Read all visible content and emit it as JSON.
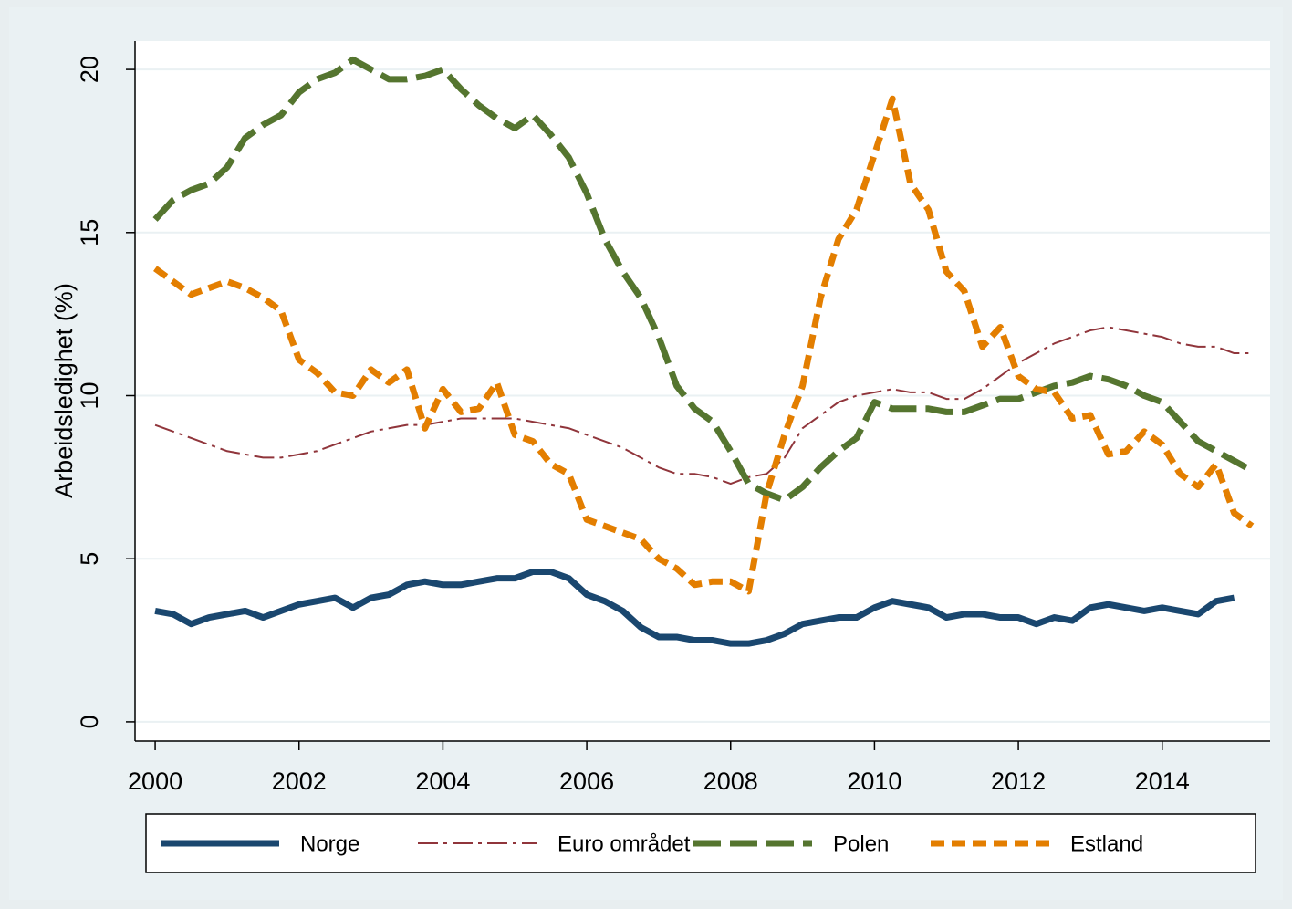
{
  "chart_data": {
    "type": "line",
    "y_label": "Arbeidsledighet (%)",
    "x": [
      2000,
      2000.25,
      2000.5,
      2000.75,
      2001,
      2001.25,
      2001.5,
      2001.75,
      2002,
      2002.25,
      2002.5,
      2002.75,
      2003,
      2003.25,
      2003.5,
      2003.75,
      2004,
      2004.25,
      2004.5,
      2004.75,
      2005,
      2005.25,
      2005.5,
      2005.75,
      2006,
      2006.25,
      2006.5,
      2006.75,
      2007,
      2007.25,
      2007.5,
      2007.75,
      2008,
      2008.25,
      2008.5,
      2008.75,
      2009,
      2009.25,
      2009.5,
      2009.75,
      2010,
      2010.25,
      2010.5,
      2010.75,
      2011,
      2011.25,
      2011.5,
      2011.75,
      2012,
      2012.25,
      2012.5,
      2012.75,
      2013,
      2013.25,
      2013.5,
      2013.75,
      2014,
      2014.25,
      2014.5,
      2014.75,
      2015,
      2015.25
    ],
    "series": [
      {
        "name": "Norge",
        "color": "#1a476f",
        "dash": "solid",
        "width": 7,
        "values": [
          3.4,
          3.3,
          3.0,
          3.2,
          3.3,
          3.4,
          3.2,
          3.4,
          3.6,
          3.7,
          3.8,
          3.5,
          3.8,
          3.9,
          4.2,
          4.3,
          4.2,
          4.2,
          4.3,
          4.4,
          4.4,
          4.6,
          4.6,
          4.4,
          3.9,
          3.7,
          3.4,
          2.9,
          2.6,
          2.6,
          2.5,
          2.5,
          2.4,
          2.4,
          2.5,
          2.7,
          3.0,
          3.1,
          3.2,
          3.2,
          3.5,
          3.7,
          3.6,
          3.5,
          3.2,
          3.3,
          3.3,
          3.2,
          3.2,
          3.0,
          3.2,
          3.1,
          3.5,
          3.6,
          3.5,
          3.4,
          3.5,
          3.4,
          3.3,
          3.7,
          3.8,
          null
        ]
      },
      {
        "name": "Euro området",
        "color": "#90353b",
        "dash": "dashdot",
        "width": 2,
        "values": [
          9.1,
          8.9,
          8.7,
          8.5,
          8.3,
          8.2,
          8.1,
          8.1,
          8.2,
          8.3,
          8.5,
          8.7,
          8.9,
          9.0,
          9.1,
          9.1,
          9.2,
          9.3,
          9.3,
          9.3,
          9.3,
          9.2,
          9.1,
          9.0,
          8.8,
          8.6,
          8.4,
          8.1,
          7.8,
          7.6,
          7.6,
          7.5,
          7.3,
          7.5,
          7.6,
          8.1,
          9.0,
          9.4,
          9.8,
          10.0,
          10.1,
          10.2,
          10.1,
          10.1,
          9.9,
          9.9,
          10.2,
          10.6,
          11.0,
          11.3,
          11.6,
          11.8,
          12.0,
          12.1,
          12.0,
          11.9,
          11.8,
          11.6,
          11.5,
          11.5,
          11.3,
          11.3
        ]
      },
      {
        "name": "Polen",
        "color": "#55752f",
        "dash": "longdash",
        "width": 7,
        "values": [
          15.4,
          16.0,
          16.3,
          16.5,
          17.0,
          17.9,
          18.3,
          18.6,
          19.3,
          19.7,
          19.9,
          20.3,
          20.0,
          19.7,
          19.7,
          19.8,
          20.0,
          19.4,
          18.9,
          18.5,
          18.2,
          18.6,
          18.0,
          17.3,
          16.2,
          14.8,
          13.8,
          13.0,
          11.8,
          10.3,
          9.6,
          9.2,
          8.3,
          7.3,
          7.0,
          6.8,
          7.2,
          7.8,
          8.3,
          8.7,
          9.8,
          9.6,
          9.6,
          9.6,
          9.5,
          9.5,
          9.7,
          9.9,
          9.9,
          10.1,
          10.3,
          10.4,
          10.6,
          10.5,
          10.3,
          10.0,
          9.8,
          9.2,
          8.6,
          8.3,
          8.0,
          7.7
        ]
      },
      {
        "name": "Estland",
        "color": "#e37e00",
        "dash": "dash",
        "width": 7,
        "values": [
          13.9,
          13.5,
          13.1,
          13.3,
          13.5,
          13.3,
          13.0,
          12.6,
          11.1,
          10.7,
          10.1,
          10.0,
          10.8,
          10.4,
          10.8,
          9.0,
          10.2,
          9.5,
          9.6,
          10.4,
          8.8,
          8.6,
          7.9,
          7.6,
          6.2,
          6.0,
          5.8,
          5.6,
          5.0,
          4.7,
          4.2,
          4.3,
          4.3,
          4.0,
          7.0,
          8.8,
          10.3,
          13.0,
          14.8,
          15.7,
          17.4,
          19.1,
          16.5,
          15.7,
          13.8,
          13.2,
          11.5,
          12.1,
          10.6,
          10.2,
          10.1,
          9.3,
          9.4,
          8.2,
          8.3,
          8.9,
          8.5,
          7.6,
          7.2,
          7.9,
          6.4,
          6.0
        ]
      }
    ],
    "xlim": [
      1999.72,
      2015.5
    ],
    "ylim": [
      -0.59,
      20.87
    ],
    "xticks": [
      2000,
      2002,
      2004,
      2006,
      2008,
      2010,
      2012,
      2014
    ],
    "yticks": [
      0,
      5,
      10,
      15,
      20
    ],
    "grid": true,
    "legend": "bottom"
  }
}
